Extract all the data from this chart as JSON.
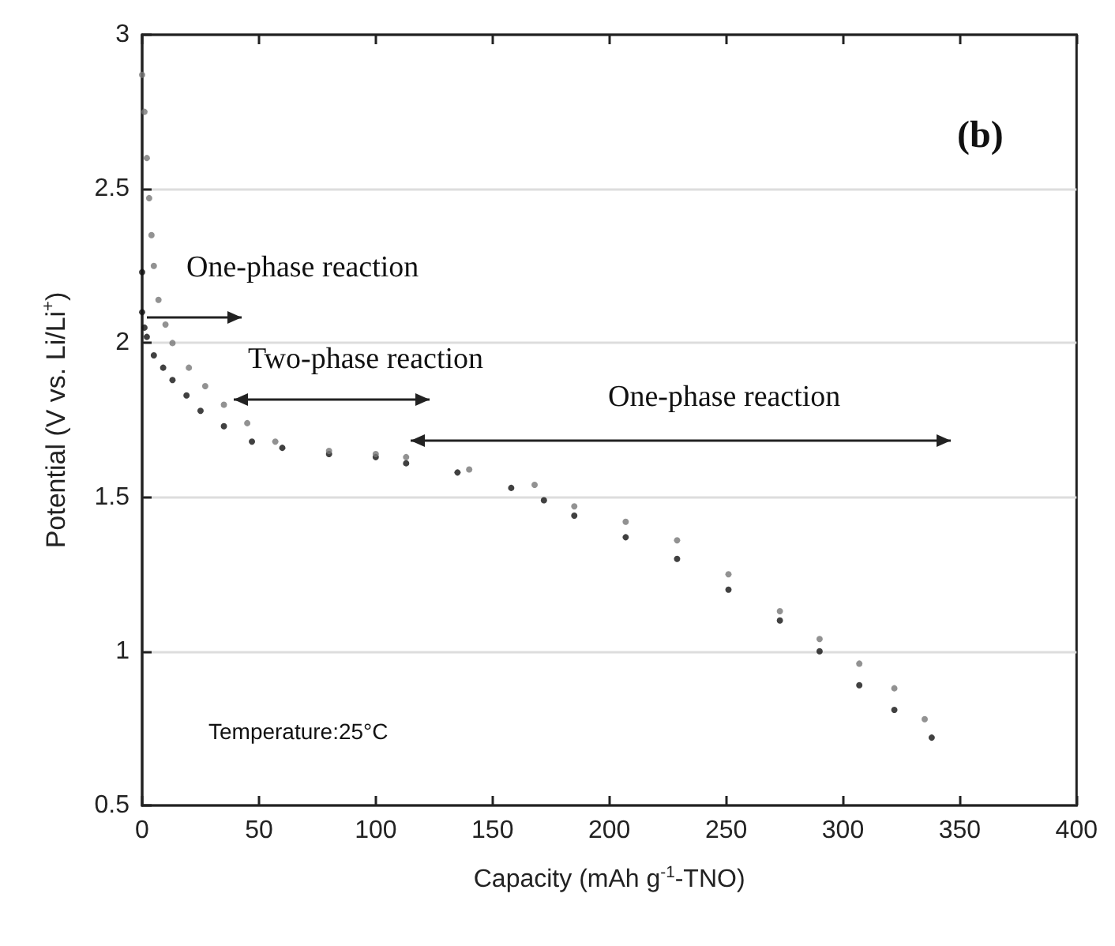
{
  "chart_data": {
    "type": "scatter",
    "xlabel": "Capacity (mAh g$^{-1}$-TNO)",
    "ylabel": "Potential (V vs. Li/Li$^{+}$)",
    "annotations": [
      "(b)",
      "Temperature:25°C",
      "One-phase reaction",
      "Two-phase reaction",
      "One-phase reaction"
    ],
    "series": [
      {
        "color": "#111111",
        "x": [
          0,
          0,
          1,
          2,
          5,
          9,
          13,
          19,
          25,
          35,
          47,
          60,
          80,
          100,
          113,
          135,
          158,
          172,
          185,
          207,
          229,
          251,
          273,
          290,
          307,
          322,
          338
        ],
        "values": [
          2.23,
          2.1,
          2.05,
          2.02,
          1.96,
          1.92,
          1.88,
          1.83,
          1.78,
          1.73,
          1.68,
          1.66,
          1.64,
          1.63,
          1.61,
          1.58,
          1.53,
          1.49,
          1.44,
          1.37,
          1.3,
          1.2,
          1.1,
          1.0,
          0.89,
          0.81,
          0.72
        ]
      },
      {
        "color": "#777777",
        "x": [
          0,
          1,
          2,
          3,
          4,
          5,
          7,
          10,
          13,
          20,
          27,
          35,
          45,
          57,
          80,
          100,
          113,
          140,
          168,
          185,
          207,
          229,
          251,
          273,
          290,
          307,
          322,
          335
        ],
        "values": [
          2.87,
          2.75,
          2.6,
          2.47,
          2.35,
          2.25,
          2.14,
          2.06,
          2.0,
          1.92,
          1.86,
          1.8,
          1.74,
          1.68,
          1.65,
          1.64,
          1.63,
          1.59,
          1.54,
          1.47,
          1.42,
          1.36,
          1.25,
          1.13,
          1.04,
          0.96,
          0.88,
          0.78
        ]
      }
    ],
    "xlim": [
      0,
      400
    ],
    "xticks": [
      0,
      50,
      100,
      150,
      200,
      250,
      300,
      350,
      400
    ],
    "ylim": [
      0.5,
      3
    ],
    "yticks": [
      0.5,
      1,
      1.5,
      2,
      2.5,
      3
    ],
    "grid": "y",
    "marker": "circle"
  }
}
